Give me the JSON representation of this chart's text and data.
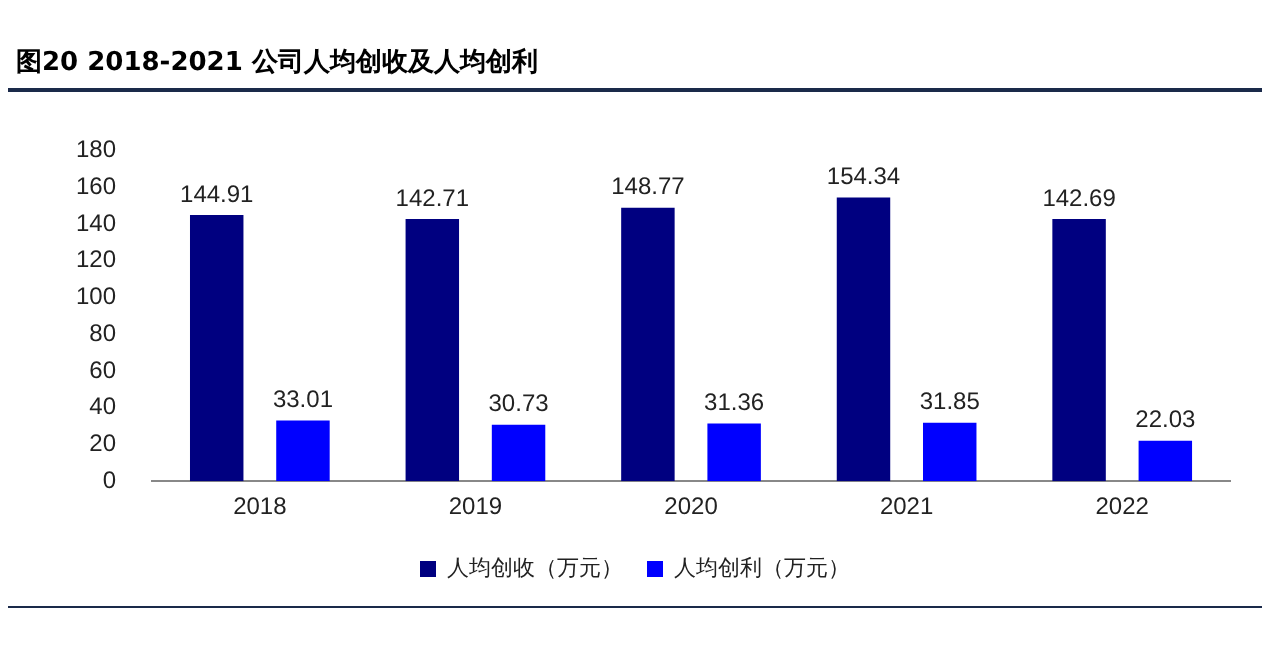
{
  "chart_data": {
    "type": "bar",
    "title": "图20 2018-2021 公司人均创收及人均创利",
    "categories": [
      "2018",
      "2019",
      "2020",
      "2021",
      "2022"
    ],
    "series": [
      {
        "name": "人均创收（万元）",
        "color": "#000080",
        "values": [
          144.91,
          142.71,
          148.77,
          154.34,
          142.69
        ]
      },
      {
        "name": "人均创利（万元）",
        "color": "#0000ff",
        "values": [
          33.01,
          30.73,
          31.36,
          31.85,
          22.03
        ]
      }
    ],
    "ylim": [
      0,
      180
    ],
    "yticks": [
      0,
      20,
      40,
      60,
      80,
      100,
      120,
      140,
      160,
      180
    ],
    "grid": false,
    "legend": "bottom",
    "data_labels": true
  }
}
